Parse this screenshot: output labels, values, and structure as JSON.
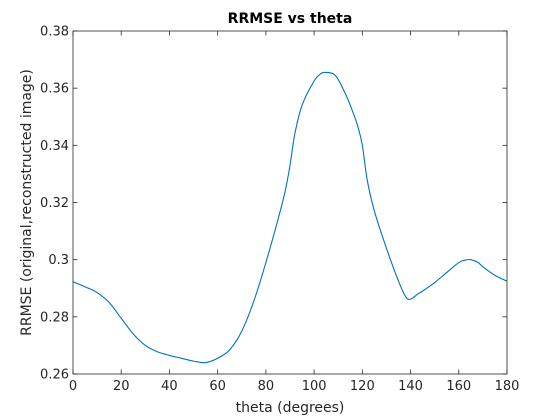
{
  "chart_data": {
    "type": "line",
    "title": "RRMSE vs theta",
    "xlabel": "theta (degrees)",
    "ylabel": "RRMSE (original,reconstructed image)",
    "xlim": [
      0,
      180
    ],
    "ylim": [
      0.26,
      0.38
    ],
    "xticks": [
      0,
      20,
      40,
      60,
      80,
      100,
      120,
      140,
      160,
      180
    ],
    "yticks": [
      0.26,
      0.28,
      0.3,
      0.32,
      0.34,
      0.36,
      0.38
    ],
    "xtick_labels": [
      "0",
      "20",
      "40",
      "60",
      "80",
      "100",
      "120",
      "140",
      "160",
      "180"
    ],
    "ytick_labels": [
      "0.26",
      "0.28",
      "0.3",
      "0.32",
      "0.34",
      "0.36",
      "0.38"
    ],
    "grid": false,
    "series": [
      {
        "color": "#0072bd",
        "x": [
          0,
          5,
          10,
          15,
          20,
          25,
          30,
          35,
          40,
          45,
          50,
          55,
          60,
          65,
          70,
          75,
          80,
          85,
          88,
          90,
          92,
          95,
          100,
          103,
          105,
          108,
          110,
          113,
          115,
          118,
          120,
          122,
          125,
          130,
          135,
          138,
          140,
          143,
          145,
          150,
          155,
          160,
          163,
          165,
          168,
          170,
          175,
          180
        ],
        "y": [
          0.2923,
          0.2905,
          0.2885,
          0.285,
          0.2795,
          0.274,
          0.27,
          0.2678,
          0.2665,
          0.2655,
          0.2645,
          0.264,
          0.2655,
          0.2685,
          0.275,
          0.2855,
          0.299,
          0.314,
          0.324,
          0.333,
          0.344,
          0.354,
          0.3625,
          0.3652,
          0.3655,
          0.365,
          0.363,
          0.358,
          0.354,
          0.347,
          0.34,
          0.328,
          0.317,
          0.304,
          0.2925,
          0.287,
          0.2862,
          0.288,
          0.289,
          0.292,
          0.2955,
          0.299,
          0.2999,
          0.3,
          0.299,
          0.2975,
          0.2945,
          0.2925
        ]
      }
    ]
  },
  "colors": {
    "axes": "#262626",
    "line": "#0072bd",
    "background": "#ffffff"
  }
}
